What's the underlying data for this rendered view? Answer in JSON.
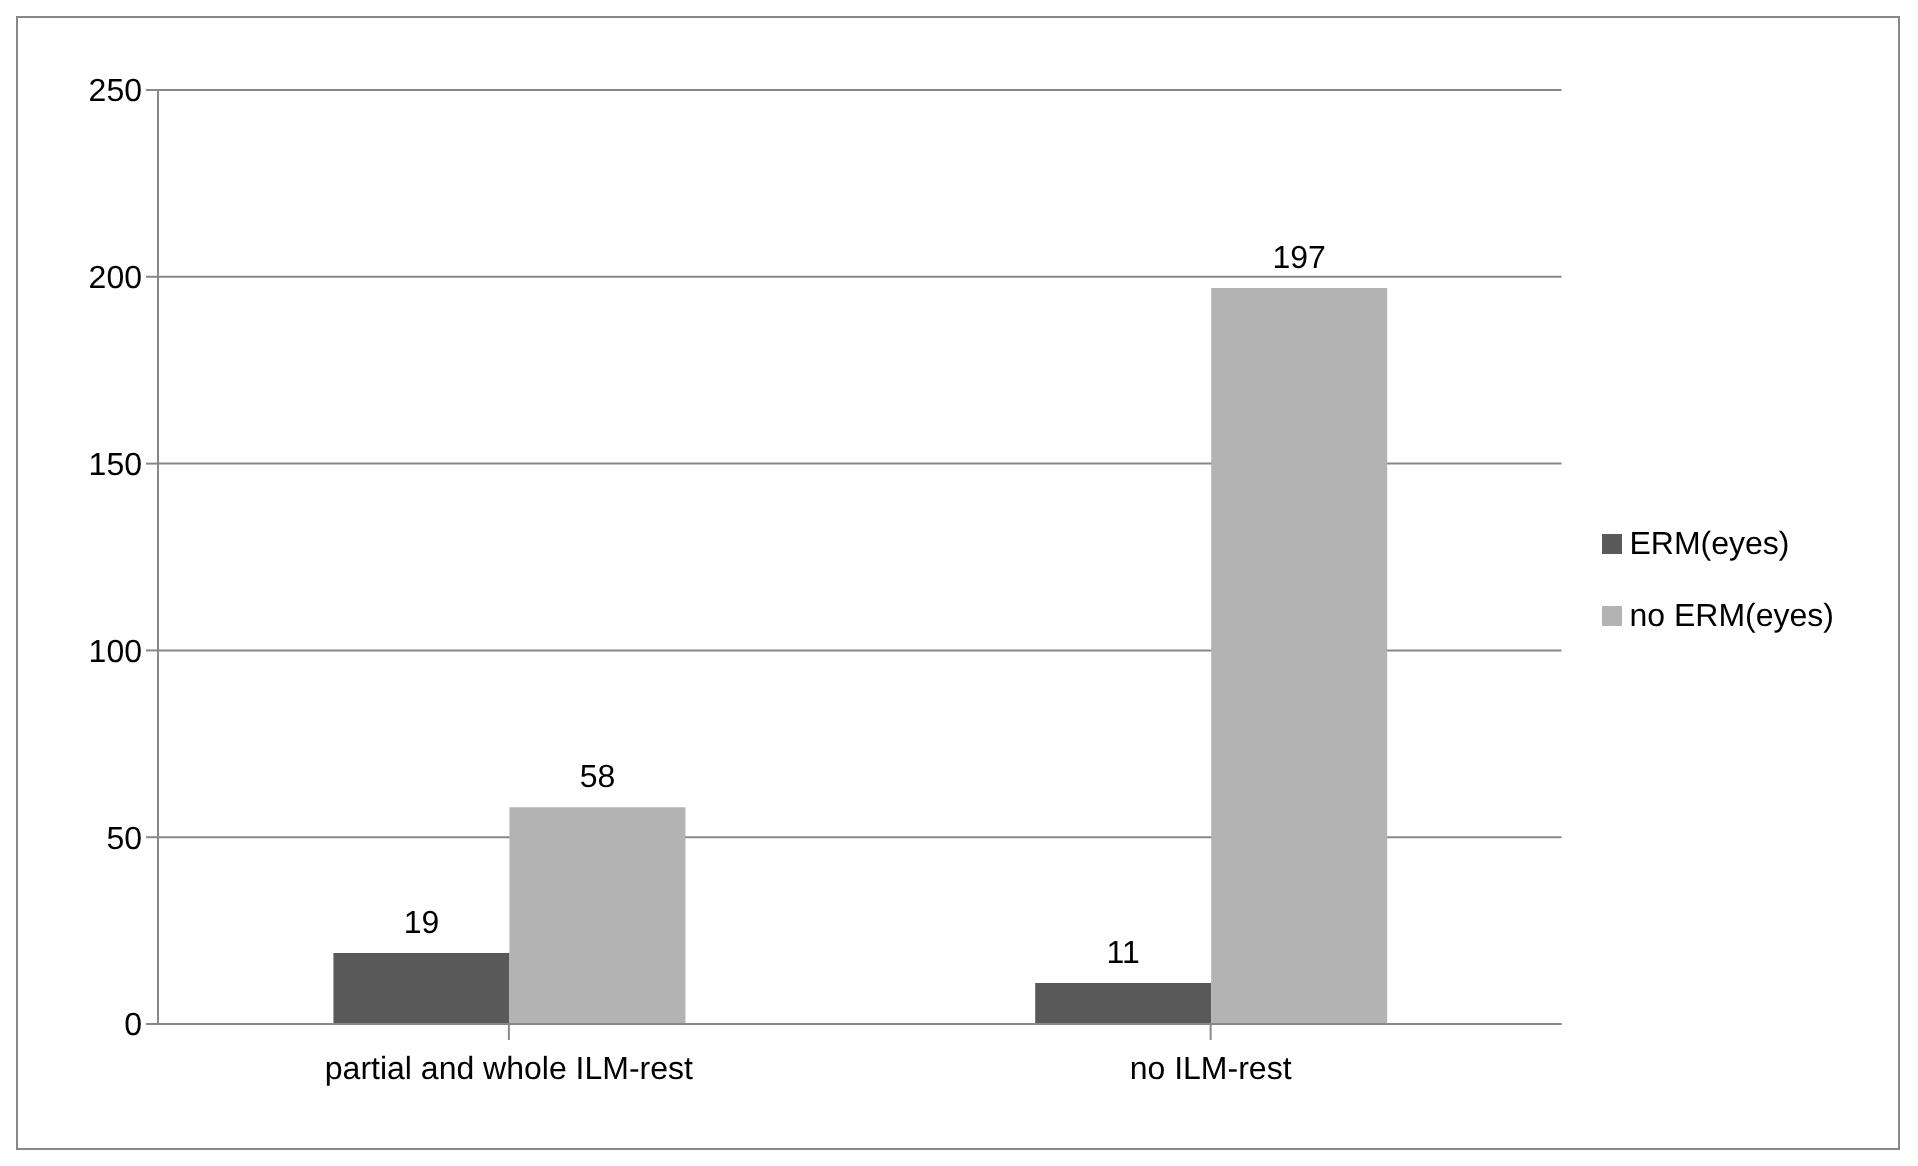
{
  "chart_data": {
    "type": "bar",
    "categories": [
      "partial and whole ILM-rest",
      "no ILM-rest"
    ],
    "series": [
      {
        "name": "ERM(eyes)",
        "color": "#595959",
        "values": [
          19,
          11
        ]
      },
      {
        "name": "no ERM(eyes)",
        "color": "#b3b3b3",
        "values": [
          58,
          197
        ]
      }
    ],
    "ylim": [
      0,
      250
    ],
    "yticks": [
      0,
      50,
      100,
      150,
      200,
      250
    ],
    "grid": "y",
    "legend": "right",
    "data_labels": true
  }
}
